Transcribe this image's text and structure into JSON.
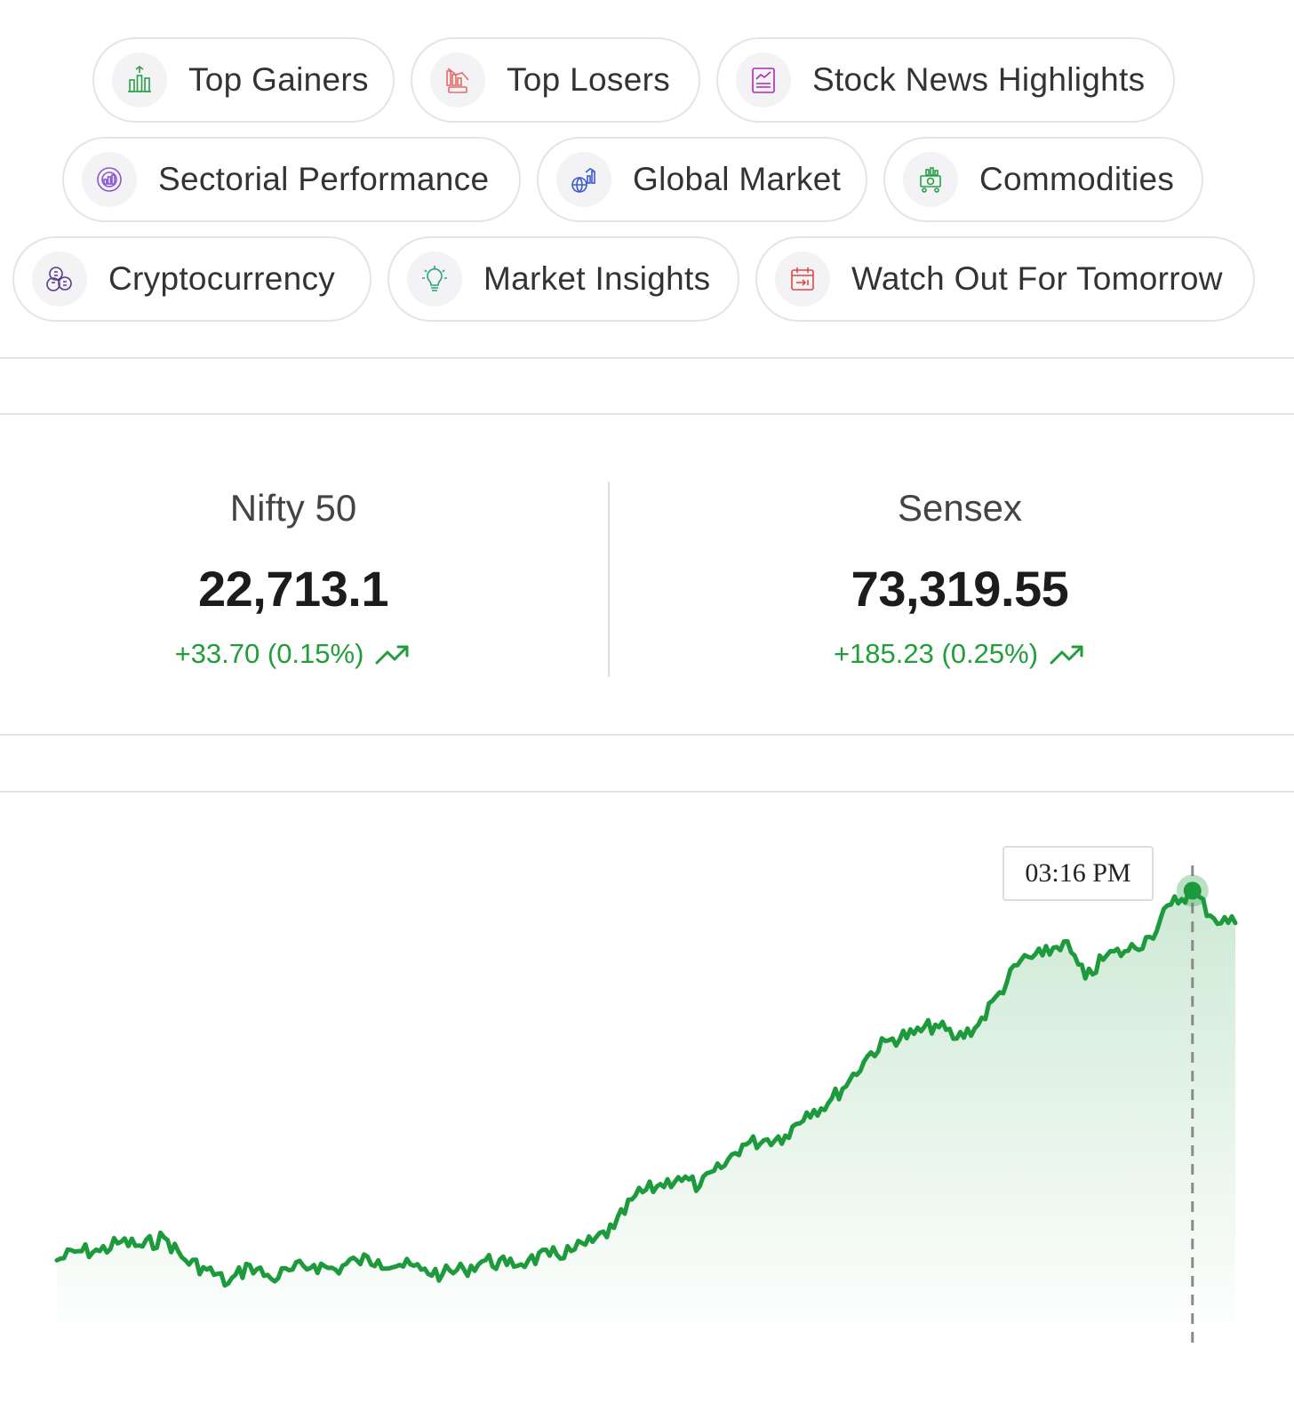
{
  "chips": [
    {
      "label": "Top Gainers",
      "icon": "bar-chart-up-icon",
      "color": "#27a047"
    },
    {
      "label": "Top Losers",
      "icon": "loss-chart-icon",
      "color": "#e86a6a"
    },
    {
      "label": "Stock News Highlights",
      "icon": "news-chart-icon",
      "color": "#b02ab0"
    },
    {
      "label": "Sectorial Performance",
      "icon": "target-chart-icon",
      "color": "#8a55d6"
    },
    {
      "label": "Global Market",
      "icon": "globe-chart-icon",
      "color": "#3a5ad6"
    },
    {
      "label": "Commodities",
      "icon": "money-cart-icon",
      "color": "#27a047"
    },
    {
      "label": "Cryptocurrency",
      "icon": "crypto-coins-icon",
      "color": "#5a3a8a"
    },
    {
      "label": "Market Insights",
      "icon": "lightbulb-icon",
      "color": "#2aa37a"
    },
    {
      "label": "Watch Out For Tomorrow",
      "icon": "calendar-icon",
      "color": "#e04848"
    }
  ],
  "indices": [
    {
      "name": "Nifty 50",
      "value": "22,713.1",
      "change": "+33.70 (0.15%)",
      "trend_icon": "trending-up-icon"
    },
    {
      "name": "Sensex",
      "value": "73,319.55",
      "change": "+185.23 (0.25%)",
      "trend_icon": "trending-up-icon"
    }
  ],
  "colors": {
    "positive": "#1f9e3a",
    "line": "#1c9a3c"
  },
  "chart_data": {
    "type": "area",
    "title": "",
    "tooltip": "03:16 PM",
    "anchors_y": [
      0.82,
      0.8,
      0.8,
      0.78,
      0.79,
      0.77,
      0.82,
      0.84,
      0.87,
      0.83,
      0.86,
      0.84,
      0.83,
      0.84,
      0.82,
      0.82,
      0.83,
      0.84,
      0.85,
      0.84,
      0.82,
      0.83,
      0.82,
      0.81,
      0.8,
      0.78,
      0.75,
      0.68,
      0.66,
      0.64,
      0.66,
      0.62,
      0.57,
      0.56,
      0.55,
      0.5,
      0.48,
      0.43,
      0.37,
      0.34,
      0.33,
      0.31,
      0.34,
      0.31,
      0.24,
      0.17,
      0.16,
      0.13,
      0.21,
      0.16,
      0.15,
      0.12,
      0.05,
      0.02,
      0.08,
      0.09
    ],
    "highlight_index": 53,
    "grid": false,
    "legend": "none"
  }
}
